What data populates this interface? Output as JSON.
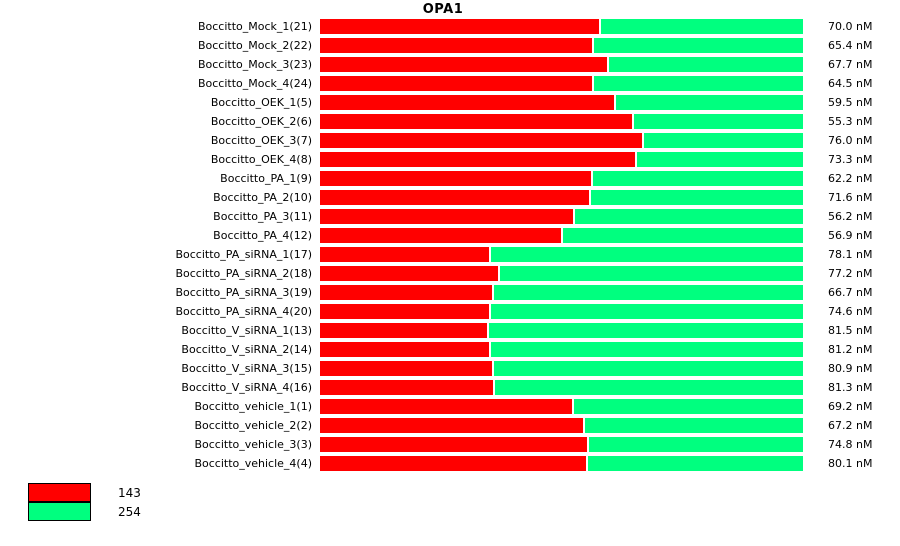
{
  "chart_data": {
    "type": "bar",
    "orientation": "horizontal",
    "stacked": true,
    "title": "OPA1",
    "unit": "nM",
    "grid": false,
    "legend_position": "bottom-left",
    "legend": [
      {
        "label": "143",
        "color": "#ff0000"
      },
      {
        "label": "254",
        "color": "#00ff7f"
      }
    ],
    "rows": [
      {
        "label": "Boccitto_Mock_1(21)",
        "value_label": "70.0 nM",
        "value_nM": 70.0,
        "red_pct": 57.8,
        "green_pct": 42.2
      },
      {
        "label": "Boccitto_Mock_2(22)",
        "value_label": "65.4 nM",
        "value_nM": 65.4,
        "red_pct": 56.3,
        "green_pct": 43.7
      },
      {
        "label": "Boccitto_Mock_3(23)",
        "value_label": "67.7 nM",
        "value_nM": 67.7,
        "red_pct": 59.4,
        "green_pct": 40.6
      },
      {
        "label": "Boccitto_Mock_4(24)",
        "value_label": "64.5 nM",
        "value_nM": 64.5,
        "red_pct": 56.3,
        "green_pct": 43.7
      },
      {
        "label": "Boccitto_OEK_1(5)",
        "value_label": "59.5 nM",
        "value_nM": 59.5,
        "red_pct": 60.9,
        "green_pct": 39.1
      },
      {
        "label": "Boccitto_OEK_2(6)",
        "value_label": "55.3 nM",
        "value_nM": 55.3,
        "red_pct": 64.6,
        "green_pct": 35.4
      },
      {
        "label": "Boccitto_OEK_3(7)",
        "value_label": "76.0 nM",
        "value_nM": 76.0,
        "red_pct": 66.7,
        "green_pct": 33.3
      },
      {
        "label": "Boccitto_OEK_4(8)",
        "value_label": "73.3 nM",
        "value_nM": 73.3,
        "red_pct": 65.2,
        "green_pct": 34.8
      },
      {
        "label": "Boccitto_PA_1(9)",
        "value_label": "62.2 nM",
        "value_nM": 62.2,
        "red_pct": 56.1,
        "green_pct": 43.9
      },
      {
        "label": "Boccitto_PA_2(10)",
        "value_label": "71.6 nM",
        "value_nM": 71.6,
        "red_pct": 55.7,
        "green_pct": 44.3
      },
      {
        "label": "Boccitto_PA_3(11)",
        "value_label": "56.2 nM",
        "value_nM": 56.2,
        "red_pct": 52.4,
        "green_pct": 47.6
      },
      {
        "label": "Boccitto_PA_4(12)",
        "value_label": "56.9 nM",
        "value_nM": 56.9,
        "red_pct": 49.9,
        "green_pct": 50.1
      },
      {
        "label": "Boccitto_PA_siRNA_1(17)",
        "value_label": "78.1 nM",
        "value_nM": 78.1,
        "red_pct": 35.0,
        "green_pct": 65.0
      },
      {
        "label": "Boccitto_PA_siRNA_2(18)",
        "value_label": "77.2 nM",
        "value_nM": 77.2,
        "red_pct": 36.9,
        "green_pct": 63.1
      },
      {
        "label": "Boccitto_PA_siRNA_3(19)",
        "value_label": "66.7 nM",
        "value_nM": 66.7,
        "red_pct": 35.6,
        "green_pct": 64.4
      },
      {
        "label": "Boccitto_PA_siRNA_4(20)",
        "value_label": "74.6 nM",
        "value_nM": 74.6,
        "red_pct": 35.0,
        "green_pct": 65.0
      },
      {
        "label": "Boccitto_V_siRNA_1(13)",
        "value_label": "81.5 nM",
        "value_nM": 81.5,
        "red_pct": 34.6,
        "green_pct": 65.4
      },
      {
        "label": "Boccitto_V_siRNA_2(14)",
        "value_label": "81.2 nM",
        "value_nM": 81.2,
        "red_pct": 35.0,
        "green_pct": 65.0
      },
      {
        "label": "Boccitto_V_siRNA_3(15)",
        "value_label": "80.9 nM",
        "value_nM": 80.9,
        "red_pct": 35.6,
        "green_pct": 64.4
      },
      {
        "label": "Boccitto_V_siRNA_4(16)",
        "value_label": "81.3 nM",
        "value_nM": 81.3,
        "red_pct": 35.8,
        "green_pct": 64.2
      },
      {
        "label": "Boccitto_vehicle_1(1)",
        "value_label": "69.2 nM",
        "value_nM": 69.2,
        "red_pct": 52.2,
        "green_pct": 47.8
      },
      {
        "label": "Boccitto_vehicle_2(2)",
        "value_label": "67.2 nM",
        "value_nM": 67.2,
        "red_pct": 54.4,
        "green_pct": 45.6
      },
      {
        "label": "Boccitto_vehicle_3(3)",
        "value_label": "74.8 nM",
        "value_nM": 74.8,
        "red_pct": 55.3,
        "green_pct": 44.7
      },
      {
        "label": "Boccitto_vehicle_4(4)",
        "value_label": "80.1 nM",
        "value_nM": 80.1,
        "red_pct": 55.1,
        "green_pct": 44.9
      }
    ]
  }
}
